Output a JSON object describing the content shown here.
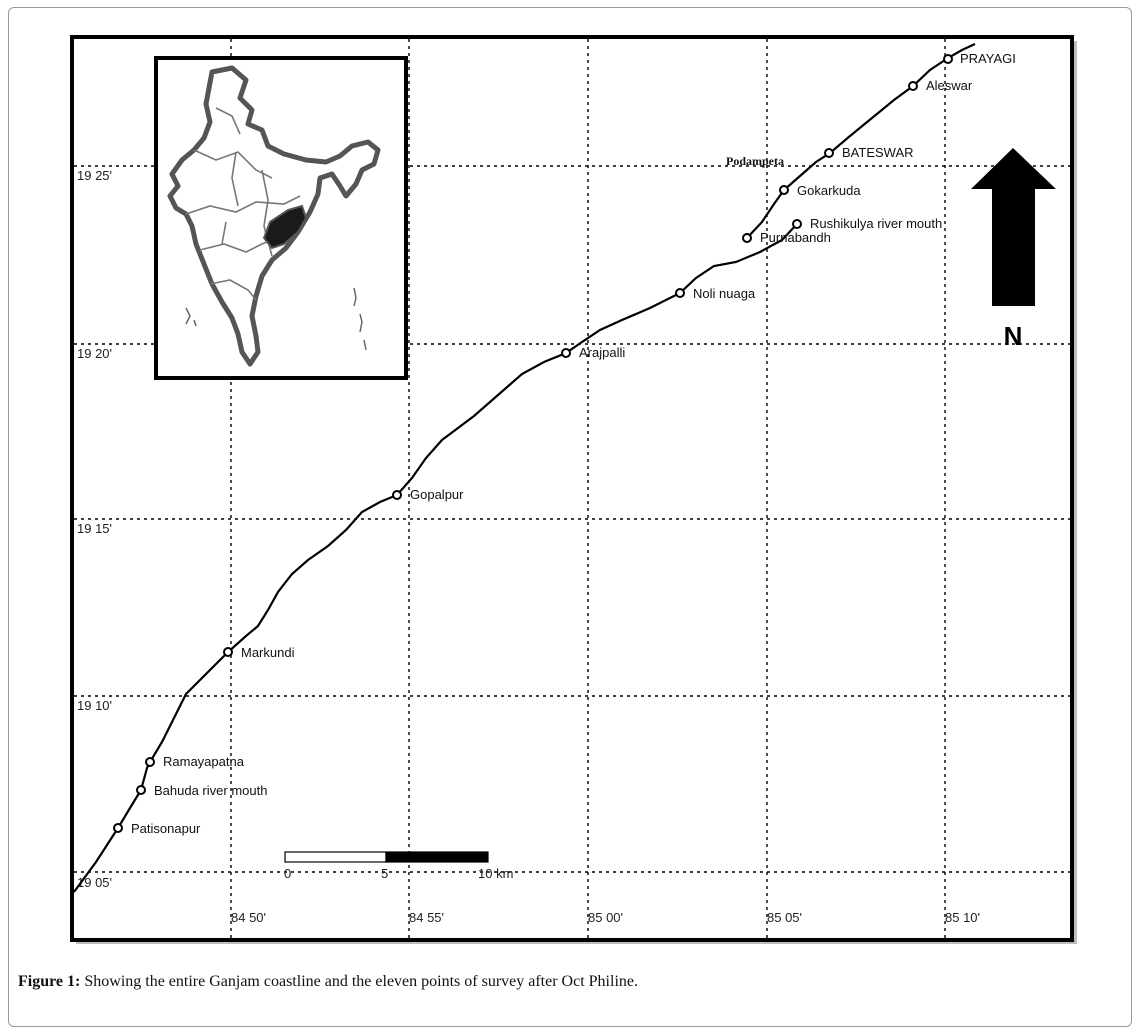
{
  "map": {
    "latitude_ticks": [
      "19 25'",
      "19 20'",
      "19 15'",
      "19 10'",
      "19 05'"
    ],
    "longitude_ticks": [
      "84 50'",
      "84 55'",
      "85 00'",
      "85 05'",
      "85 10'"
    ],
    "survey_points": [
      {
        "label": "PRAYAGI"
      },
      {
        "label": "Aleswar"
      },
      {
        "label": "BATESWAR"
      },
      {
        "label": "Gokarkuda"
      },
      {
        "label": "Rushikulya river mouth"
      },
      {
        "label": "Purnabandh"
      },
      {
        "label": "Noli nuaga"
      },
      {
        "label": "Arajpalli"
      },
      {
        "label": "Gopalpur"
      },
      {
        "label": "Markundi"
      },
      {
        "label": "Ramayapatna"
      },
      {
        "label": "Bahuda river mouth"
      },
      {
        "label": "Patisonapur"
      }
    ],
    "extra_label": "Podampeta",
    "north_label": "N",
    "scale_bar": {
      "labels": [
        "0",
        "5",
        "10 km"
      ]
    }
  },
  "caption": {
    "prefix": "Figure 1:",
    "text": " Showing the entire Ganjam coastline and the eleven points of survey after Oct Philine."
  }
}
